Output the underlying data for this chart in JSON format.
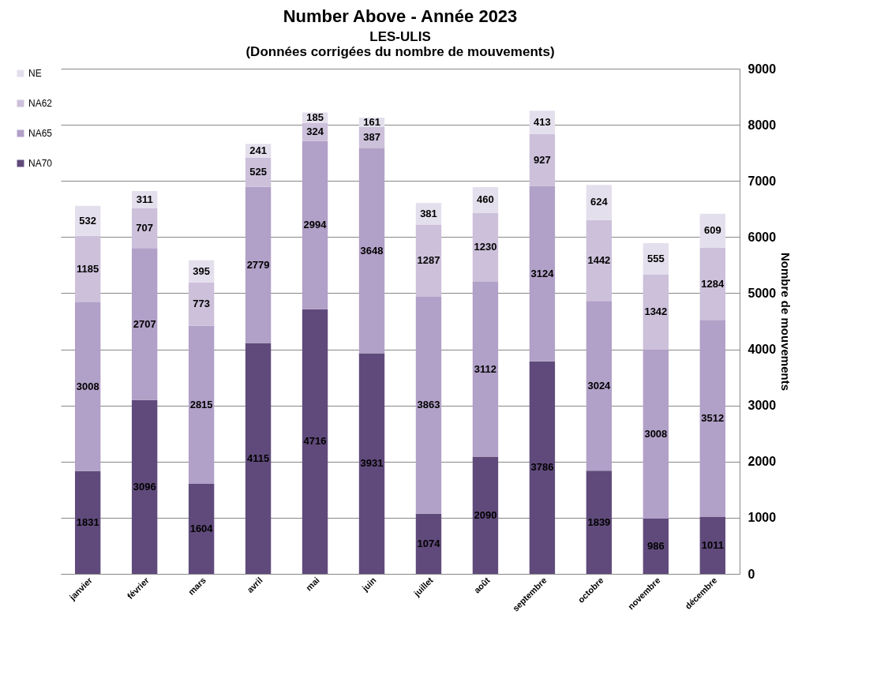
{
  "chart_data": {
    "type": "bar",
    "title": "Number Above - Année 2023",
    "subtitle": "LES-ULIS",
    "annotations": [
      "(Données corrigées du nombre de mouvements)"
    ],
    "ylabel": "Nombre de mouvements",
    "categories": [
      "janvier",
      "février",
      "mars",
      "avril",
      "mai",
      "juin",
      "juillet",
      "août",
      "septembre",
      "octobre",
      "novembre",
      "décembre"
    ],
    "series": [
      {
        "name": "NA70",
        "color": "#604a7b",
        "values": [
          1831,
          3096,
          1604,
          4115,
          4716,
          3931,
          1074,
          2090,
          3786,
          1839,
          986,
          1011
        ]
      },
      {
        "name": "NA65",
        "color": "#b1a0c7",
        "values": [
          3008,
          2707,
          2815,
          2779,
          2994,
          3648,
          3863,
          3112,
          3124,
          3024,
          3008,
          3512
        ]
      },
      {
        "name": "NA62",
        "color": "#ccc0da",
        "values": [
          1185,
          707,
          773,
          525,
          324,
          387,
          1287,
          1230,
          927,
          1442,
          1342,
          1284
        ]
      },
      {
        "name": "NE",
        "color": "#e4dfec",
        "values": [
          532,
          311,
          395,
          241,
          185,
          161,
          381,
          460,
          413,
          624,
          555,
          609
        ]
      }
    ],
    "stacked": true,
    "data_labels": true,
    "ylim": [
      0,
      9000
    ],
    "yticks": [
      0,
      1000,
      2000,
      3000,
      4000,
      5000,
      6000,
      7000,
      8000,
      9000
    ],
    "grid": "y",
    "legend": "left"
  }
}
